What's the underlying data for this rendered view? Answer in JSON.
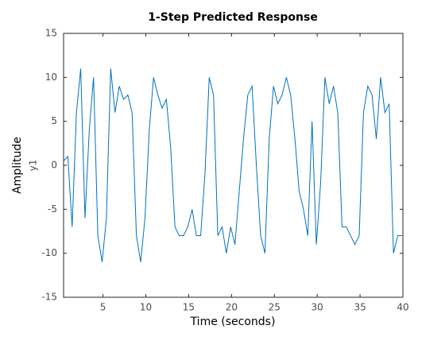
{
  "chart_data": {
    "type": "line",
    "title": "1-Step Predicted Response",
    "xlabel": "Time (seconds)",
    "ylabel": "Amplitude",
    "channel_label": "y1",
    "x": [
      0.4,
      0.9,
      1.4,
      1.9,
      2.4,
      2.9,
      3.4,
      3.9,
      4.4,
      4.9,
      5.4,
      5.9,
      6.4,
      6.9,
      7.4,
      7.9,
      8.4,
      8.9,
      9.4,
      9.9,
      10.4,
      10.9,
      11.4,
      11.9,
      12.4,
      12.9,
      13.4,
      13.9,
      14.4,
      14.9,
      15.4,
      15.9,
      16.4,
      16.9,
      17.4,
      17.9,
      18.4,
      18.9,
      19.4,
      19.9,
      20.4,
      20.9,
      21.4,
      21.9,
      22.4,
      22.9,
      23.4,
      23.9,
      24.4,
      24.9,
      25.4,
      25.9,
      26.4,
      26.9,
      27.4,
      27.9,
      28.4,
      28.9,
      29.4,
      29.9,
      30.4,
      30.9,
      31.4,
      31.9,
      32.4,
      32.9,
      33.4,
      33.9,
      34.4,
      34.9,
      35.4,
      35.9,
      36.4,
      36.9,
      37.4,
      37.9,
      38.4,
      38.9,
      39.4,
      39.9
    ],
    "series": [
      {
        "name": "y1",
        "color": "#0072bd",
        "values": [
          0.5,
          1,
          -7,
          6,
          11,
          -6,
          4,
          10,
          -8,
          -11,
          -6,
          11,
          6,
          9,
          7.5,
          8,
          6,
          -8,
          -11,
          -6,
          4,
          10,
          8,
          6.5,
          7.5,
          2,
          -7,
          -8,
          -8,
          -7,
          -5,
          -8,
          -8,
          -1,
          10,
          8,
          -8,
          -7,
          -10,
          -7,
          -9,
          -3,
          3,
          8,
          9,
          0,
          -8,
          -10,
          3,
          9,
          7,
          8,
          10,
          8,
          3,
          -3,
          -5,
          -8,
          5,
          -9,
          -2,
          10,
          7,
          9,
          6,
          -7,
          -7,
          -8,
          -9,
          -8,
          6,
          9,
          8,
          3,
          10,
          6,
          7,
          -10,
          -8,
          -8
        ]
      }
    ],
    "xlim": [
      0.4,
      40
    ],
    "xticks": [
      5,
      10,
      15,
      20,
      25,
      30,
      35,
      40
    ],
    "ylim": [
      -15,
      15
    ],
    "yticks": [
      -15,
      -10,
      -5,
      0,
      5,
      10,
      15
    ]
  }
}
